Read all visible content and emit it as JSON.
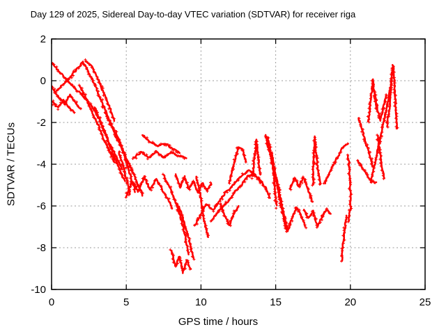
{
  "title": "Day 129 of 2025, Sidereal Day-to-day VTEC variation (SDTVAR) for receiver riga",
  "colors": {
    "series": "#ff0000",
    "frame": "#000000",
    "grid": "#9a9a9a",
    "background": "#ffffff"
  },
  "chart_data": {
    "type": "scatter",
    "title": "Day 129 of 2025, Sidereal Day-to-day VTEC variation (SDTVAR) for receiver riga",
    "xlabel": "GPS time / hours",
    "ylabel": "SDTVAR / TECUs",
    "xlim": [
      0,
      25
    ],
    "ylim": [
      -10,
      2
    ],
    "xticks": [
      0,
      5,
      10,
      15,
      20,
      25
    ],
    "yticks": [
      2,
      0,
      -2,
      -4,
      -6,
      -8,
      -10
    ],
    "grid": true,
    "legend": "none",
    "marker": "plus",
    "marker_color": "#ff0000",
    "traces": [
      [
        [
          0.05,
          0.85
        ],
        [
          0.6,
          0.35
        ],
        [
          1.2,
          -0.1
        ],
        [
          1.9,
          -0.6
        ],
        [
          2.6,
          -1.1
        ],
        [
          3.0,
          -1.6
        ],
        [
          3.4,
          -2.2
        ],
        [
          3.8,
          -2.9
        ],
        [
          4.3,
          -3.6
        ],
        [
          4.7,
          -4.2
        ]
      ],
      [
        [
          0.3,
          -0.5
        ],
        [
          0.8,
          -0.15
        ],
        [
          1.4,
          0.3
        ],
        [
          2.1,
          0.9
        ],
        [
          2.5,
          0.4
        ],
        [
          2.9,
          -0.2
        ],
        [
          3.3,
          -0.9
        ],
        [
          3.7,
          -1.6
        ],
        [
          4.1,
          -2.3
        ],
        [
          4.4,
          -2.9
        ]
      ],
      [
        [
          0.05,
          -0.3
        ],
        [
          0.45,
          -0.75
        ],
        [
          0.85,
          -1.1
        ],
        [
          1.25,
          -0.7
        ],
        [
          1.6,
          -1.05
        ],
        [
          1.95,
          -1.35
        ]
      ],
      [
        [
          0.05,
          -1.0
        ],
        [
          0.4,
          -1.3
        ],
        [
          0.8,
          -0.95
        ],
        [
          1.15,
          -1.25
        ],
        [
          1.5,
          -1.5
        ]
      ],
      [
        [
          2.3,
          0.95
        ],
        [
          2.7,
          0.7
        ],
        [
          3.1,
          0.1
        ],
        [
          3.5,
          -0.6
        ],
        [
          3.9,
          -1.3
        ],
        [
          4.2,
          -1.9
        ]
      ],
      [
        [
          1.9,
          -0.25
        ],
        [
          2.3,
          -0.85
        ],
        [
          2.7,
          -1.5
        ],
        [
          3.1,
          -2.1
        ],
        [
          3.5,
          -2.8
        ],
        [
          3.9,
          -3.4
        ],
        [
          4.2,
          -3.9
        ]
      ],
      [
        [
          2.9,
          -1.3
        ],
        [
          3.3,
          -2.0
        ],
        [
          3.7,
          -2.7
        ],
        [
          4.0,
          -3.3
        ],
        [
          4.3,
          -3.8
        ],
        [
          4.6,
          -4.3
        ],
        [
          4.9,
          -4.8
        ]
      ],
      [
        [
          3.6,
          -1.5
        ],
        [
          4.0,
          -2.1
        ],
        [
          4.5,
          -2.9
        ],
        [
          5.0,
          -3.7
        ],
        [
          5.4,
          -4.3
        ],
        [
          5.8,
          -5.0
        ],
        [
          6.1,
          -5.5
        ]
      ],
      [
        [
          4.3,
          -2.5
        ],
        [
          4.7,
          -3.2
        ],
        [
          5.0,
          -3.9
        ],
        [
          5.3,
          -4.6
        ],
        [
          5.6,
          -5.3
        ]
      ],
      [
        [
          4.5,
          -3.4
        ],
        [
          4.8,
          -4.1
        ],
        [
          5.05,
          -4.8
        ],
        [
          5.25,
          -5.45
        ]
      ],
      [
        [
          5.0,
          -5.5
        ],
        [
          5.4,
          -4.8
        ],
        [
          5.8,
          -5.3
        ],
        [
          6.2,
          -4.6
        ],
        [
          6.6,
          -5.2
        ],
        [
          7.0,
          -4.7
        ],
        [
          7.4,
          -5.2
        ],
        [
          7.8,
          -5.7
        ],
        [
          8.1,
          -6.1
        ]
      ],
      [
        [
          5.5,
          -3.7
        ],
        [
          6.0,
          -3.4
        ],
        [
          6.5,
          -3.7
        ],
        [
          7.0,
          -3.4
        ],
        [
          7.5,
          -3.7
        ],
        [
          8.0,
          -3.4
        ],
        [
          8.5,
          -3.6
        ],
        [
          9.0,
          -3.7
        ]
      ],
      [
        [
          6.1,
          -2.6
        ],
        [
          6.6,
          -2.95
        ],
        [
          7.1,
          -3.15
        ],
        [
          7.6,
          -3.0
        ],
        [
          8.1,
          -3.25
        ],
        [
          8.55,
          -3.45
        ]
      ],
      [
        [
          7.5,
          -4.5
        ],
        [
          7.95,
          -5.2
        ],
        [
          8.35,
          -5.9
        ],
        [
          8.7,
          -6.7
        ],
        [
          9.0,
          -7.6
        ],
        [
          9.15,
          -8.3
        ]
      ],
      [
        [
          8.0,
          -8.15
        ],
        [
          8.3,
          -8.9
        ],
        [
          8.55,
          -8.4
        ],
        [
          8.8,
          -9.2
        ],
        [
          9.05,
          -8.6
        ],
        [
          9.3,
          -9.05
        ]
      ],
      [
        [
          8.45,
          -5.95
        ],
        [
          8.75,
          -6.5
        ],
        [
          9.05,
          -7.2
        ],
        [
          9.3,
          -7.9
        ],
        [
          9.5,
          -8.5
        ]
      ],
      [
        [
          9.7,
          -4.6
        ],
        [
          9.9,
          -5.3
        ],
        [
          10.1,
          -6.2
        ],
        [
          10.3,
          -7.0
        ],
        [
          10.5,
          -7.5
        ]
      ],
      [
        [
          8.3,
          -4.5
        ],
        [
          8.6,
          -5.1
        ],
        [
          8.9,
          -4.6
        ],
        [
          9.2,
          -5.2
        ],
        [
          9.5,
          -4.8
        ],
        [
          9.8,
          -5.4
        ],
        [
          10.1,
          -4.9
        ],
        [
          10.4,
          -5.3
        ],
        [
          10.7,
          -4.9
        ]
      ],
      [
        [
          9.6,
          -6.9
        ],
        [
          10.0,
          -6.4
        ],
        [
          10.4,
          -5.9
        ],
        [
          10.8,
          -6.2
        ],
        [
          11.2,
          -5.8
        ],
        [
          11.6,
          -5.4
        ],
        [
          12.0,
          -5.1
        ],
        [
          12.4,
          -4.8
        ],
        [
          12.8,
          -4.5
        ],
        [
          13.2,
          -4.3
        ],
        [
          13.6,
          -4.5
        ],
        [
          14.0,
          -4.9
        ]
      ],
      [
        [
          10.7,
          -6.7
        ],
        [
          11.1,
          -6.3
        ],
        [
          11.5,
          -6.0
        ],
        [
          11.9,
          -5.7
        ],
        [
          12.3,
          -5.3
        ],
        [
          12.7,
          -5.0
        ],
        [
          13.1,
          -4.6
        ],
        [
          13.5,
          -4.5
        ],
        [
          13.9,
          -4.7
        ],
        [
          14.3,
          -5.1
        ],
        [
          14.6,
          -5.6
        ]
      ],
      [
        [
          11.3,
          -5.9
        ],
        [
          11.6,
          -6.5
        ],
        [
          11.9,
          -6.9
        ],
        [
          12.2,
          -6.4
        ],
        [
          12.5,
          -6.0
        ]
      ],
      [
        [
          11.9,
          -4.9
        ],
        [
          12.2,
          -4.0
        ],
        [
          12.5,
          -3.15
        ],
        [
          12.8,
          -3.3
        ],
        [
          13.0,
          -3.9
        ]
      ],
      [
        [
          13.45,
          -4.6
        ],
        [
          13.6,
          -3.6
        ],
        [
          13.7,
          -2.85
        ],
        [
          13.8,
          -3.5
        ],
        [
          13.95,
          -4.5
        ]
      ],
      [
        [
          14.75,
          -3.45
        ],
        [
          14.85,
          -4.3
        ],
        [
          14.95,
          -5.2
        ],
        [
          15.05,
          -6.0
        ]
      ],
      [
        [
          14.3,
          -2.6
        ],
        [
          14.55,
          -3.3
        ],
        [
          14.8,
          -4.1
        ],
        [
          15.05,
          -4.9
        ],
        [
          15.3,
          -5.7
        ],
        [
          15.55,
          -6.5
        ],
        [
          15.75,
          -7.2
        ]
      ],
      [
        [
          14.45,
          -2.7
        ],
        [
          14.7,
          -3.5
        ],
        [
          14.95,
          -4.3
        ],
        [
          15.2,
          -5.2
        ],
        [
          15.45,
          -6.1
        ],
        [
          15.65,
          -6.9
        ]
      ],
      [
        [
          15.5,
          -6.3
        ],
        [
          15.8,
          -7.2
        ],
        [
          16.1,
          -6.6
        ],
        [
          16.4,
          -6.05
        ],
        [
          16.7,
          -6.5
        ],
        [
          17.0,
          -7.0
        ]
      ],
      [
        [
          15.95,
          -5.2
        ],
        [
          16.25,
          -4.65
        ],
        [
          16.55,
          -5.1
        ],
        [
          16.85,
          -4.6
        ],
        [
          17.15,
          -5.2
        ],
        [
          17.45,
          -5.8
        ]
      ],
      [
        [
          16.9,
          -6.2
        ],
        [
          17.2,
          -6.6
        ],
        [
          17.5,
          -6.25
        ],
        [
          17.8,
          -7.0
        ],
        [
          18.1,
          -6.5
        ],
        [
          18.4,
          -6.15
        ],
        [
          18.7,
          -6.4
        ]
      ],
      [
        [
          17.5,
          -5.0
        ],
        [
          17.55,
          -3.8
        ],
        [
          17.6,
          -2.7
        ],
        [
          17.7,
          -3.4
        ],
        [
          17.8,
          -4.2
        ],
        [
          18.0,
          -5.0
        ]
      ],
      [
        [
          18.3,
          -4.9
        ],
        [
          18.6,
          -4.4
        ],
        [
          18.9,
          -4.0
        ],
        [
          19.2,
          -3.6
        ],
        [
          19.5,
          -3.2
        ],
        [
          19.85,
          -3.0
        ]
      ],
      [
        [
          19.85,
          -3.6
        ],
        [
          19.95,
          -4.5
        ],
        [
          20.0,
          -5.3
        ],
        [
          20.0,
          -6.1
        ],
        [
          19.9,
          -6.7
        ]
      ],
      [
        [
          19.75,
          -6.5
        ],
        [
          19.6,
          -7.2
        ],
        [
          19.5,
          -7.9
        ],
        [
          19.42,
          -8.6
        ]
      ],
      [
        [
          20.5,
          -3.8
        ],
        [
          20.8,
          -4.2
        ],
        [
          21.1,
          -4.5
        ],
        [
          21.4,
          -4.8
        ],
        [
          21.7,
          -4.9
        ]
      ],
      [
        [
          20.55,
          -1.8
        ],
        [
          20.8,
          -2.4
        ],
        [
          21.05,
          -3.0
        ],
        [
          21.3,
          -3.6
        ],
        [
          21.5,
          -4.1
        ]
      ],
      [
        [
          21.35,
          -4.9
        ],
        [
          21.6,
          -4.1
        ],
        [
          21.85,
          -3.2
        ],
        [
          22.1,
          -2.4
        ],
        [
          22.35,
          -1.6
        ],
        [
          22.55,
          -0.9
        ],
        [
          22.7,
          -0.2
        ],
        [
          22.82,
          0.55
        ]
      ],
      [
        [
          21.2,
          -2.0
        ],
        [
          21.35,
          -1.0
        ],
        [
          21.5,
          0.05
        ],
        [
          21.62,
          -0.6
        ],
        [
          21.75,
          -1.3
        ]
      ],
      [
        [
          22.45,
          -2.2
        ],
        [
          22.6,
          -1.4
        ],
        [
          22.7,
          -0.6
        ],
        [
          22.78,
          0.2
        ],
        [
          22.85,
          0.72
        ],
        [
          22.95,
          0.1
        ],
        [
          23.0,
          -0.7
        ],
        [
          23.05,
          -1.5
        ],
        [
          23.1,
          -2.3
        ]
      ],
      [
        [
          21.6,
          -0.7
        ],
        [
          21.8,
          -1.3
        ],
        [
          22.0,
          -1.9
        ],
        [
          22.2,
          -1.3
        ],
        [
          22.4,
          -0.7
        ]
      ],
      [
        [
          21.8,
          -2.6
        ],
        [
          21.95,
          -3.3
        ],
        [
          22.1,
          -4.0
        ],
        [
          22.25,
          -4.7
        ]
      ]
    ]
  }
}
